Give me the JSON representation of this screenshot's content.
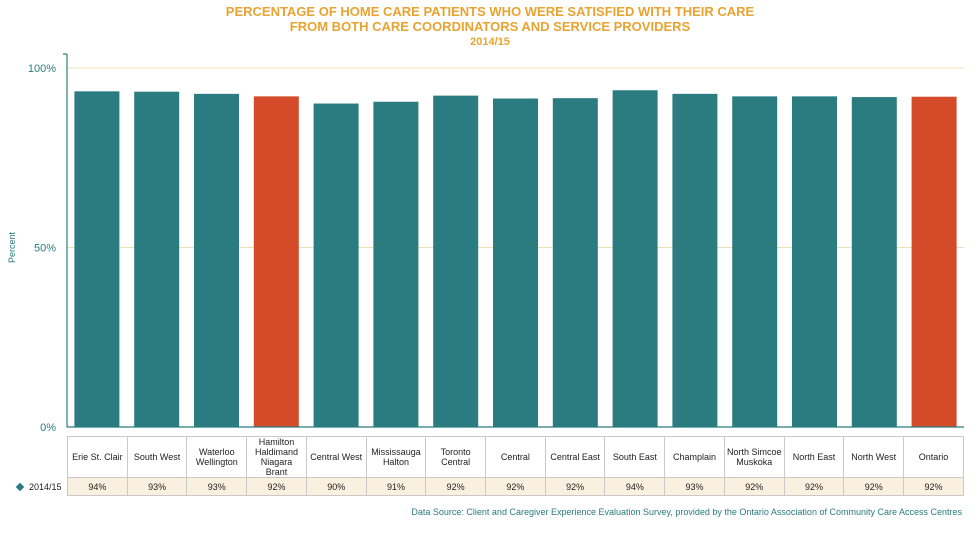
{
  "chart_data": {
    "type": "bar",
    "title_line1": "PERCENTAGE OF HOME CARE PATIENTS WHO WERE SATISFIED WITH THEIR CARE",
    "title_line2": "FROM BOTH CARE COORDINATORS AND SERVICE PROVIDERS",
    "subtitle": "2014/15",
    "ylabel": "Percent",
    "ylim": [
      0,
      100
    ],
    "yticks": [
      "0%",
      "50%",
      "100%"
    ],
    "grid": true,
    "categories": [
      [
        "Erie St. Clair"
      ],
      [
        "South West"
      ],
      [
        "Waterloo",
        "Wellington"
      ],
      [
        "Hamilton",
        "Haldimand",
        "Niagara",
        "Brant"
      ],
      [
        "Central West"
      ],
      [
        "Mississauga",
        "Halton"
      ],
      [
        "Toronto",
        "Central"
      ],
      [
        "Central"
      ],
      [
        "Central East"
      ],
      [
        "South East"
      ],
      [
        "Champlain"
      ],
      [
        "North Simcoe",
        "Muskoka"
      ],
      [
        "North East"
      ],
      [
        "North West"
      ],
      [
        "Ontario"
      ]
    ],
    "series": [
      {
        "name": "2014/15",
        "values": [
          93.5,
          93.4,
          92.8,
          92.1,
          90.1,
          90.6,
          92.3,
          91.5,
          91.6,
          93.8,
          92.8,
          92.1,
          92.1,
          91.9,
          92.0
        ],
        "value_labels": [
          "94%",
          "93%",
          "93%",
          "92%",
          "90%",
          "91%",
          "92%",
          "92%",
          "92%",
          "94%",
          "93%",
          "92%",
          "92%",
          "92%",
          "92%"
        ]
      }
    ],
    "highlighted": [
      "Hamilton Haldimand Niagara Brant",
      "Ontario"
    ],
    "colors": {
      "bar": "#2b7c80",
      "highlight": "#d44b2a",
      "axis": "#2b7c80",
      "gridline": "#ede0b8"
    },
    "source": "Data Source: Client and Caregiver Experience Evaluation Survey, provided by the Ontario Association of Community Care Access Centres"
  }
}
